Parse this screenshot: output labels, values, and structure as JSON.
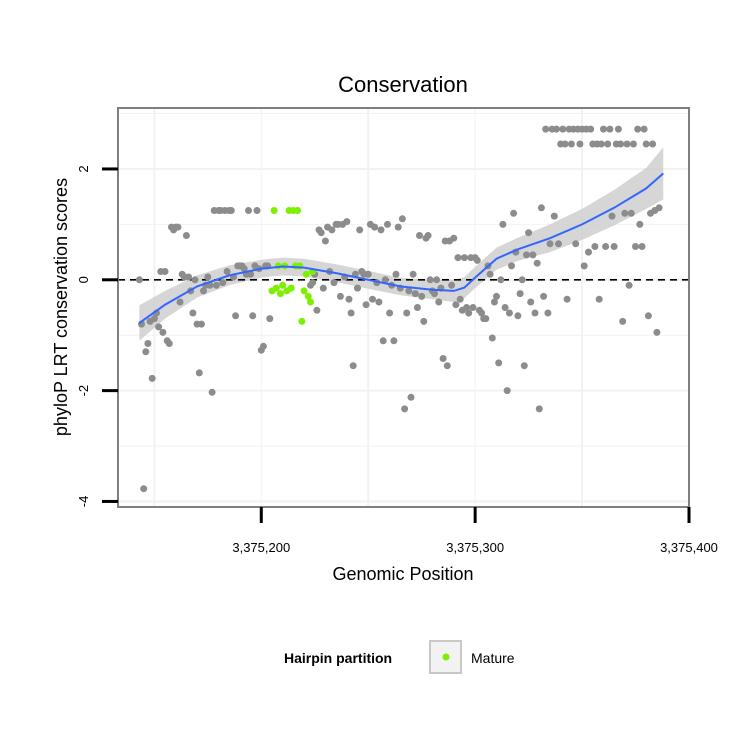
{
  "chart_data": {
    "type": "scatter",
    "title": "Conservation",
    "xlabel": "Genomic Position",
    "ylabel": "phyloP LRT conservation scores",
    "xlim": [
      3375133,
      3375400
    ],
    "ylim": [
      -4.1,
      3.1
    ],
    "x_ticks": [
      {
        "value": 3375200,
        "label": "3,375,200"
      },
      {
        "value": 3375300,
        "label": "3,375,300"
      },
      {
        "value": 3375400,
        "label": "3,375,400"
      }
    ],
    "y_ticks": [
      {
        "value": 2,
        "label": "2"
      },
      {
        "value": 0,
        "label": "0"
      },
      {
        "value": -2,
        "label": "-2"
      },
      {
        "value": -4,
        "label": "-4"
      }
    ],
    "grid": true,
    "reference_line": {
      "y": 0,
      "style": "dashed"
    },
    "colors": {
      "other_points": "#8c8c8c",
      "mature_points": "#7cf000",
      "smooth_line": "#3366ff",
      "confidence_band": "#c8c8c8",
      "panel_border": "#7f7f7f",
      "grid": "#f2f2f2"
    },
    "legend": {
      "position": "bottom",
      "title": "Hairpin partition",
      "entries": [
        {
          "label": "Mature",
          "color": "#7cf000"
        }
      ]
    },
    "series": [
      {
        "name": "",
        "values": [
          [
            3375143,
            0.0
          ],
          [
            3375144,
            -0.8
          ],
          [
            3375145,
            -3.77
          ],
          [
            3375146,
            -1.3
          ],
          [
            3375147,
            -1.15
          ],
          [
            3375148,
            -0.75
          ],
          [
            3375149,
            -1.78
          ],
          [
            3375150,
            -0.7
          ],
          [
            3375151,
            -0.6
          ],
          [
            3375152,
            -0.85
          ],
          [
            3375153,
            0.15
          ],
          [
            3375154,
            -0.95
          ],
          [
            3375155,
            0.15
          ],
          [
            3375156,
            -1.1
          ],
          [
            3375157,
            -1.15
          ],
          [
            3375158,
            0.95
          ],
          [
            3375159,
            0.9
          ],
          [
            3375160,
            0.95
          ],
          [
            3375161,
            0.95
          ],
          [
            3375162,
            -0.4
          ],
          [
            3375163,
            0.1
          ],
          [
            3375164,
            0.05
          ],
          [
            3375165,
            0.8
          ],
          [
            3375166,
            0.05
          ],
          [
            3375167,
            -0.2
          ],
          [
            3375168,
            -0.6
          ],
          [
            3375169,
            0.0
          ],
          [
            3375170,
            -0.8
          ],
          [
            3375171,
            -1.68
          ],
          [
            3375172,
            -0.8
          ],
          [
            3375173,
            -0.2
          ],
          [
            3375174,
            -0.1
          ],
          [
            3375175,
            0.05
          ],
          [
            3375176,
            -0.1
          ],
          [
            3375177,
            -2.03
          ],
          [
            3375178,
            1.25
          ],
          [
            3375179,
            -0.1
          ],
          [
            3375180,
            1.25
          ],
          [
            3375181,
            1.25
          ],
          [
            3375182,
            -0.05
          ],
          [
            3375183,
            1.25
          ],
          [
            3375184,
            0.15
          ],
          [
            3375185,
            1.25
          ],
          [
            3375186,
            1.25
          ],
          [
            3375187,
            0.05
          ],
          [
            3375188,
            -0.65
          ],
          [
            3375189,
            0.25
          ],
          [
            3375190,
            0.25
          ],
          [
            3375191,
            0.25
          ],
          [
            3375192,
            0.2
          ],
          [
            3375193,
            0.1
          ],
          [
            3375194,
            1.25
          ],
          [
            3375195,
            0.1
          ],
          [
            3375196,
            -0.65
          ],
          [
            3375197,
            0.25
          ],
          [
            3375198,
            1.25
          ],
          [
            3375199,
            0.2
          ],
          [
            3375200,
            -1.27
          ],
          [
            3375201,
            -1.2
          ],
          [
            3375202,
            0.25
          ],
          [
            3375203,
            0.25
          ],
          [
            3375204,
            -0.7
          ],
          [
            3375223,
            -0.1
          ],
          [
            3375224,
            -0.05
          ],
          [
            3375225,
            0.1
          ],
          [
            3375226,
            -0.55
          ],
          [
            3375227,
            0.9
          ],
          [
            3375228,
            0.85
          ],
          [
            3375229,
            -0.15
          ],
          [
            3375230,
            0.7
          ],
          [
            3375231,
            0.95
          ],
          [
            3375232,
            0.15
          ],
          [
            3375233,
            0.9
          ],
          [
            3375234,
            -0.05
          ],
          [
            3375235,
            1.0
          ],
          [
            3375236,
            1.0
          ],
          [
            3375237,
            -0.3
          ],
          [
            3375238,
            1.0
          ],
          [
            3375239,
            0.05
          ],
          [
            3375240,
            1.05
          ],
          [
            3375241,
            -0.35
          ],
          [
            3375242,
            -0.6
          ],
          [
            3375243,
            -1.55
          ],
          [
            3375244,
            0.1
          ],
          [
            3375245,
            -0.15
          ],
          [
            3375246,
            0.9
          ],
          [
            3375247,
            0.15
          ],
          [
            3375248,
            0.1
          ],
          [
            3375249,
            -0.45
          ],
          [
            3375250,
            0.1
          ],
          [
            3375251,
            1.0
          ],
          [
            3375252,
            -0.35
          ],
          [
            3375253,
            0.95
          ],
          [
            3375254,
            -0.05
          ],
          [
            3375255,
            -0.4
          ],
          [
            3375256,
            0.9
          ],
          [
            3375257,
            -1.1
          ],
          [
            3375258,
            0.0
          ],
          [
            3375259,
            1.0
          ],
          [
            3375260,
            -0.6
          ],
          [
            3375261,
            -0.1
          ],
          [
            3375262,
            -1.1
          ],
          [
            3375263,
            0.1
          ],
          [
            3375264,
            0.95
          ],
          [
            3375265,
            -0.15
          ],
          [
            3375266,
            1.1
          ],
          [
            3375267,
            -2.33
          ],
          [
            3375268,
            -0.6
          ],
          [
            3375269,
            -0.2
          ],
          [
            3375270,
            -2.12
          ],
          [
            3375271,
            0.1
          ],
          [
            3375272,
            -0.25
          ],
          [
            3375273,
            -0.5
          ],
          [
            3375274,
            0.8
          ],
          [
            3375275,
            -0.3
          ],
          [
            3375276,
            -0.75
          ],
          [
            3375277,
            0.75
          ],
          [
            3375278,
            0.8
          ],
          [
            3375279,
            0.0
          ],
          [
            3375280,
            -0.2
          ],
          [
            3375281,
            -0.25
          ],
          [
            3375282,
            0.0
          ],
          [
            3375283,
            -0.4
          ],
          [
            3375284,
            -0.15
          ],
          [
            3375285,
            -1.42
          ],
          [
            3375286,
            0.7
          ],
          [
            3375287,
            -1.55
          ],
          [
            3375288,
            0.7
          ],
          [
            3375289,
            -0.1
          ],
          [
            3375290,
            0.75
          ],
          [
            3375291,
            -0.45
          ],
          [
            3375292,
            0.4
          ],
          [
            3375293,
            -0.35
          ],
          [
            3375294,
            -0.55
          ],
          [
            3375295,
            0.4
          ],
          [
            3375296,
            -0.5
          ],
          [
            3375297,
            -0.6
          ],
          [
            3375298,
            0.4
          ],
          [
            3375299,
            -0.5
          ],
          [
            3375300,
            0.4
          ],
          [
            3375301,
            0.35
          ],
          [
            3375302,
            -0.55
          ],
          [
            3375303,
            -0.6
          ],
          [
            3375304,
            -0.7
          ],
          [
            3375305,
            -0.7
          ],
          [
            3375306,
            0.25
          ],
          [
            3375307,
            0.1
          ],
          [
            3375308,
            -1.05
          ],
          [
            3375309,
            -0.4
          ],
          [
            3375310,
            -0.3
          ],
          [
            3375311,
            -1.5
          ],
          [
            3375312,
            0.0
          ],
          [
            3375313,
            1.0
          ],
          [
            3375314,
            -0.5
          ],
          [
            3375315,
            -2.0
          ],
          [
            3375316,
            -0.6
          ],
          [
            3375317,
            0.25
          ],
          [
            3375318,
            1.2
          ],
          [
            3375319,
            0.5
          ],
          [
            3375320,
            -0.65
          ],
          [
            3375321,
            -0.25
          ],
          [
            3375322,
            0.0
          ],
          [
            3375323,
            -1.55
          ],
          [
            3375324,
            0.45
          ],
          [
            3375325,
            0.85
          ],
          [
            3375326,
            -0.4
          ],
          [
            3375327,
            0.45
          ],
          [
            3375328,
            -0.6
          ],
          [
            3375329,
            0.3
          ],
          [
            3375330,
            -2.33
          ],
          [
            3375331,
            1.3
          ],
          [
            3375332,
            -0.3
          ],
          [
            3375333,
            2.72
          ],
          [
            3375334,
            -0.6
          ],
          [
            3375335,
            0.65
          ],
          [
            3375336,
            2.72
          ],
          [
            3375337,
            1.15
          ],
          [
            3375338,
            2.72
          ],
          [
            3375339,
            0.65
          ],
          [
            3375340,
            2.45
          ],
          [
            3375341,
            2.72
          ],
          [
            3375342,
            2.45
          ],
          [
            3375343,
            -0.35
          ],
          [
            3375344,
            2.72
          ],
          [
            3375345,
            2.45
          ],
          [
            3375346,
            2.72
          ],
          [
            3375347,
            0.65
          ],
          [
            3375348,
            2.72
          ],
          [
            3375349,
            2.45
          ],
          [
            3375350,
            2.72
          ],
          [
            3375351,
            0.25
          ],
          [
            3375352,
            2.72
          ],
          [
            3375353,
            0.5
          ],
          [
            3375354,
            2.72
          ],
          [
            3375355,
            2.45
          ],
          [
            3375356,
            0.6
          ],
          [
            3375357,
            2.45
          ],
          [
            3375358,
            -0.35
          ],
          [
            3375359,
            2.45
          ],
          [
            3375360,
            2.72
          ],
          [
            3375361,
            0.6
          ],
          [
            3375362,
            2.45
          ],
          [
            3375363,
            2.72
          ],
          [
            3375364,
            1.15
          ],
          [
            3375365,
            0.6
          ],
          [
            3375366,
            2.45
          ],
          [
            3375367,
            2.72
          ],
          [
            3375368,
            2.45
          ],
          [
            3375369,
            -0.75
          ],
          [
            3375370,
            1.2
          ],
          [
            3375371,
            2.45
          ],
          [
            3375372,
            -0.1
          ],
          [
            3375373,
            1.2
          ],
          [
            3375374,
            2.45
          ],
          [
            3375375,
            0.6
          ],
          [
            3375376,
            2.72
          ],
          [
            3375377,
            1.0
          ],
          [
            3375378,
            0.6
          ],
          [
            3375379,
            2.72
          ],
          [
            3375380,
            2.45
          ],
          [
            3375381,
            -0.65
          ],
          [
            3375382,
            1.2
          ],
          [
            3375383,
            2.45
          ],
          [
            3375384,
            1.25
          ],
          [
            3375385,
            -0.95
          ],
          [
            3375386,
            1.3
          ]
        ]
      },
      {
        "name": "Mature",
        "values": [
          [
            3375205,
            -0.2
          ],
          [
            3375206,
            1.25
          ],
          [
            3375207,
            -0.15
          ],
          [
            3375208,
            0.25
          ],
          [
            3375209,
            -0.25
          ],
          [
            3375210,
            -0.1
          ],
          [
            3375211,
            0.25
          ],
          [
            3375212,
            -0.2
          ],
          [
            3375213,
            1.25
          ],
          [
            3375214,
            -0.15
          ],
          [
            3375215,
            1.25
          ],
          [
            3375216,
            0.25
          ],
          [
            3375217,
            1.25
          ],
          [
            3375218,
            0.25
          ],
          [
            3375219,
            -0.75
          ],
          [
            3375220,
            -0.2
          ],
          [
            3375221,
            0.1
          ],
          [
            3375222,
            -0.3
          ],
          [
            3375223,
            -0.4
          ],
          [
            3375224,
            0.15
          ]
        ]
      }
    ],
    "smooth": {
      "method": "loess",
      "x": [
        3375143,
        3375155,
        3375170,
        3375185,
        3375200,
        3375210,
        3375220,
        3375235,
        3375250,
        3375265,
        3375280,
        3375290,
        3375295,
        3375300,
        3375310,
        3375320,
        3375335,
        3375350,
        3375365,
        3375380,
        3375388
      ],
      "y": [
        -0.78,
        -0.45,
        -0.12,
        0.08,
        0.2,
        0.24,
        0.22,
        0.12,
        0.0,
        -0.12,
        -0.18,
        -0.2,
        -0.14,
        0.04,
        0.38,
        0.55,
        0.75,
        1.0,
        1.3,
        1.65,
        1.92
      ],
      "lower": [
        -1.1,
        -0.7,
        -0.32,
        -0.1,
        0.04,
        0.08,
        0.06,
        -0.04,
        -0.16,
        -0.28,
        -0.35,
        -0.4,
        -0.33,
        -0.15,
        0.18,
        0.34,
        0.5,
        0.72,
        0.98,
        1.28,
        1.45
      ],
      "upper": [
        -0.46,
        -0.2,
        0.08,
        0.26,
        0.36,
        0.4,
        0.38,
        0.28,
        0.16,
        0.04,
        -0.01,
        0.0,
        0.05,
        0.23,
        0.58,
        0.76,
        1.0,
        1.28,
        1.62,
        2.02,
        2.39
      ]
    }
  }
}
